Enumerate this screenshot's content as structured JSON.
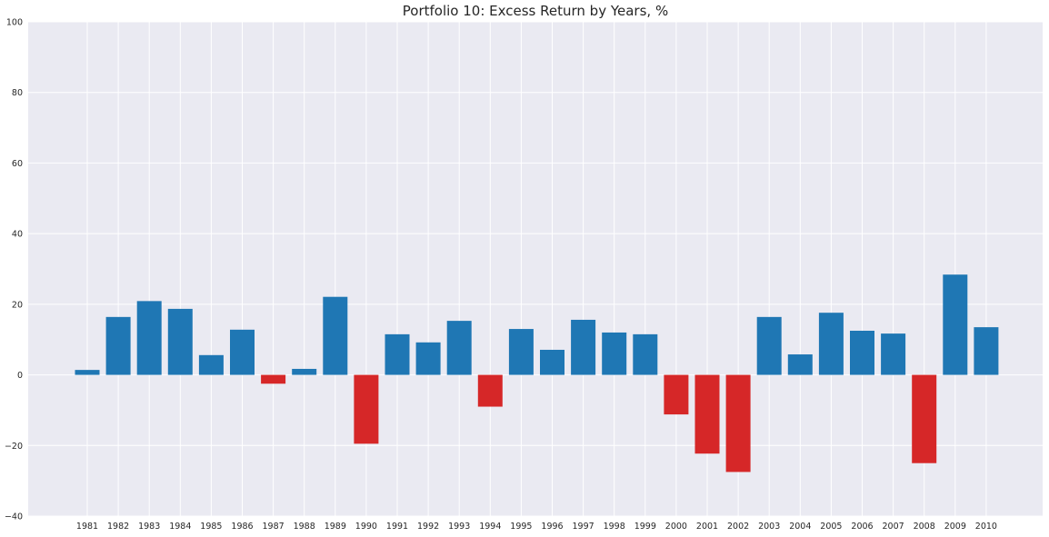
{
  "chart_data": {
    "type": "bar",
    "title": "Portfolio 10: Excess Return by Years, %",
    "xlabel": "",
    "ylabel": "",
    "ylim": [
      -40,
      100
    ],
    "yticks": [
      -40,
      -20,
      0,
      20,
      40,
      60,
      80,
      100
    ],
    "grid": true,
    "legend": "none",
    "colors": {
      "positive": "#1f77b4",
      "negative": "#d62728",
      "background": "#eaeaf2",
      "grid": "#ffffff"
    },
    "categories": [
      "1981",
      "1982",
      "1983",
      "1984",
      "1985",
      "1986",
      "1987",
      "1988",
      "1989",
      "1990",
      "1991",
      "1992",
      "1993",
      "1994",
      "1995",
      "1996",
      "1997",
      "1998",
      "1999",
      "2000",
      "2001",
      "2002",
      "2003",
      "2004",
      "2005",
      "2006",
      "2007",
      "2008",
      "2009",
      "2010"
    ],
    "values": [
      1.4,
      16.4,
      20.9,
      18.7,
      5.6,
      12.8,
      -2.5,
      1.7,
      22.1,
      -19.5,
      11.5,
      9.2,
      15.3,
      -9.0,
      13.0,
      7.1,
      15.6,
      12.0,
      11.5,
      -11.2,
      -22.3,
      -27.5,
      16.4,
      5.8,
      17.6,
      12.5,
      11.7,
      -25.0,
      28.4,
      13.5
    ]
  }
}
